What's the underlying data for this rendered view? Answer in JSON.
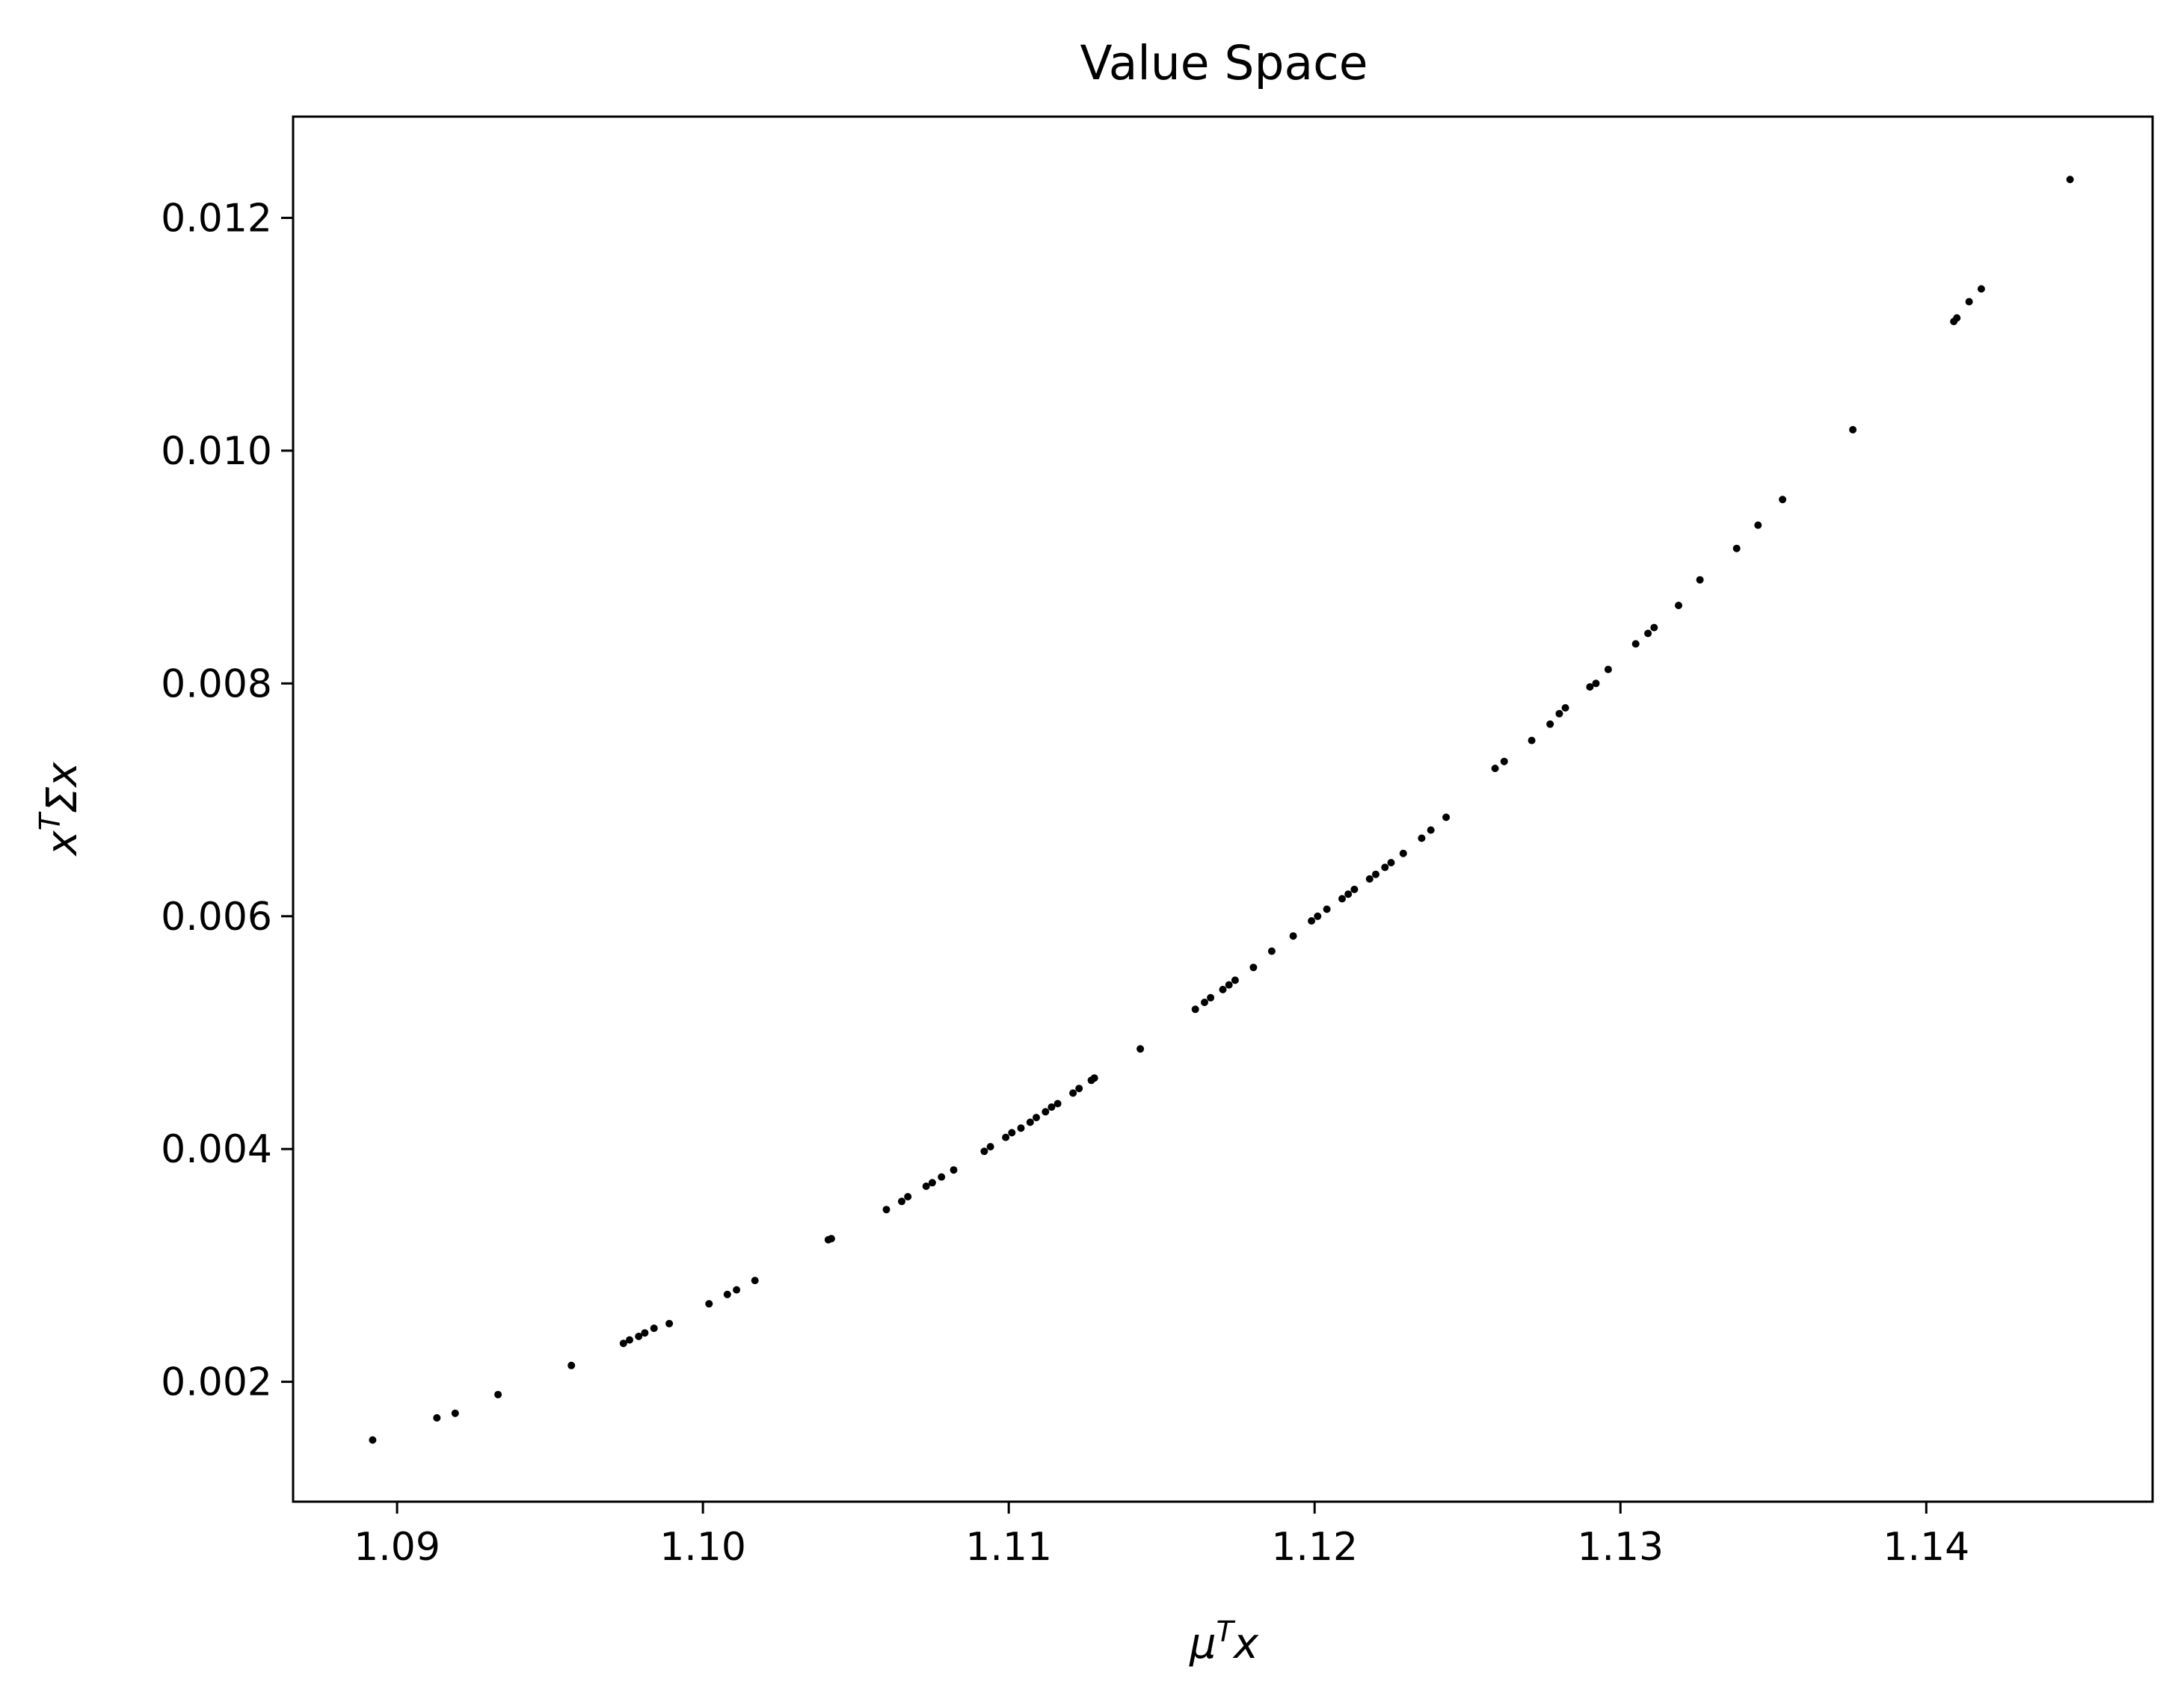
{
  "chart_data": {
    "type": "scatter",
    "title": "Value Space",
    "xlabel": {
      "base": "μ",
      "sup": "T",
      "tail": "x"
    },
    "ylabel": {
      "base": "x",
      "sup": "T",
      "tail": "Σx"
    },
    "xlim": [
      1.0866,
      1.1474
    ],
    "ylim": [
      0.00097,
      0.01287
    ],
    "xticks": [
      1.09,
      1.1,
      1.11,
      1.12,
      1.13,
      1.14
    ],
    "xtick_labels": [
      "1.09",
      "1.10",
      "1.11",
      "1.12",
      "1.13",
      "1.14"
    ],
    "yticks": [
      0.002,
      0.004,
      0.006,
      0.008,
      0.01,
      0.012
    ],
    "ytick_labels": [
      "0.002",
      "0.004",
      "0.006",
      "0.008",
      "0.010",
      "0.012"
    ],
    "grid": false,
    "marker_color": "#000000",
    "points": [
      [
        1.0892,
        0.0015
      ],
      [
        1.0913,
        0.00169
      ],
      [
        1.0919,
        0.00173
      ],
      [
        1.0933,
        0.00189
      ],
      [
        1.0957,
        0.00214
      ],
      [
        1.0974,
        0.00233
      ],
      [
        1.0976,
        0.00236
      ],
      [
        1.0979,
        0.00239
      ],
      [
        1.0981,
        0.00242
      ],
      [
        1.0984,
        0.00246
      ],
      [
        1.0989,
        0.0025
      ],
      [
        1.1002,
        0.00267
      ],
      [
        1.1008,
        0.00275
      ],
      [
        1.1011,
        0.00279
      ],
      [
        1.1017,
        0.00287
      ],
      [
        1.1041,
        0.00322
      ],
      [
        1.1042,
        0.00323
      ],
      [
        1.106,
        0.00348
      ],
      [
        1.1065,
        0.00355
      ],
      [
        1.1067,
        0.00359
      ],
      [
        1.1073,
        0.00368
      ],
      [
        1.1075,
        0.00371
      ],
      [
        1.1078,
        0.00376
      ],
      [
        1.1082,
        0.00382
      ],
      [
        1.1092,
        0.00398
      ],
      [
        1.1094,
        0.00402
      ],
      [
        1.1099,
        0.0041
      ],
      [
        1.1101,
        0.00414
      ],
      [
        1.1104,
        0.00418
      ],
      [
        1.1107,
        0.00423
      ],
      [
        1.1109,
        0.00427
      ],
      [
        1.1112,
        0.00432
      ],
      [
        1.1114,
        0.00436
      ],
      [
        1.1116,
        0.00439
      ],
      [
        1.1121,
        0.00448
      ],
      [
        1.1123,
        0.00452
      ],
      [
        1.1127,
        0.00459
      ],
      [
        1.1128,
        0.00461
      ],
      [
        1.1143,
        0.00486
      ],
      [
        1.1161,
        0.0052
      ],
      [
        1.1164,
        0.00526
      ],
      [
        1.1166,
        0.0053
      ],
      [
        1.117,
        0.00537
      ],
      [
        1.1172,
        0.00541
      ],
      [
        1.1174,
        0.00545
      ],
      [
        1.118,
        0.00556
      ],
      [
        1.1186,
        0.0057
      ],
      [
        1.1193,
        0.00583
      ],
      [
        1.1199,
        0.00596
      ],
      [
        1.1201,
        0.006
      ],
      [
        1.1204,
        0.00606
      ],
      [
        1.1209,
        0.00615
      ],
      [
        1.1211,
        0.00619
      ],
      [
        1.1213,
        0.00623
      ],
      [
        1.1218,
        0.00632
      ],
      [
        1.122,
        0.00636
      ],
      [
        1.1223,
        0.00642
      ],
      [
        1.1225,
        0.00646
      ],
      [
        1.1229,
        0.00654
      ],
      [
        1.1235,
        0.00667
      ],
      [
        1.1238,
        0.00674
      ],
      [
        1.1243,
        0.00685
      ],
      [
        1.1259,
        0.00727
      ],
      [
        1.1262,
        0.00733
      ],
      [
        1.1271,
        0.00751
      ],
      [
        1.1277,
        0.00765
      ],
      [
        1.128,
        0.00774
      ],
      [
        1.1282,
        0.00779
      ],
      [
        1.129,
        0.00797
      ],
      [
        1.1292,
        0.008
      ],
      [
        1.1296,
        0.00812
      ],
      [
        1.1305,
        0.00834
      ],
      [
        1.1309,
        0.00843
      ],
      [
        1.1311,
        0.00848
      ],
      [
        1.1319,
        0.00867
      ],
      [
        1.1326,
        0.00889
      ],
      [
        1.1338,
        0.00916
      ],
      [
        1.1345,
        0.00936
      ],
      [
        1.1353,
        0.00958
      ],
      [
        1.1376,
        0.01018
      ],
      [
        1.1409,
        0.01111
      ],
      [
        1.141,
        0.01114
      ],
      [
        1.1414,
        0.01128
      ],
      [
        1.1418,
        0.01139
      ],
      [
        1.1447,
        0.01233
      ]
    ]
  }
}
